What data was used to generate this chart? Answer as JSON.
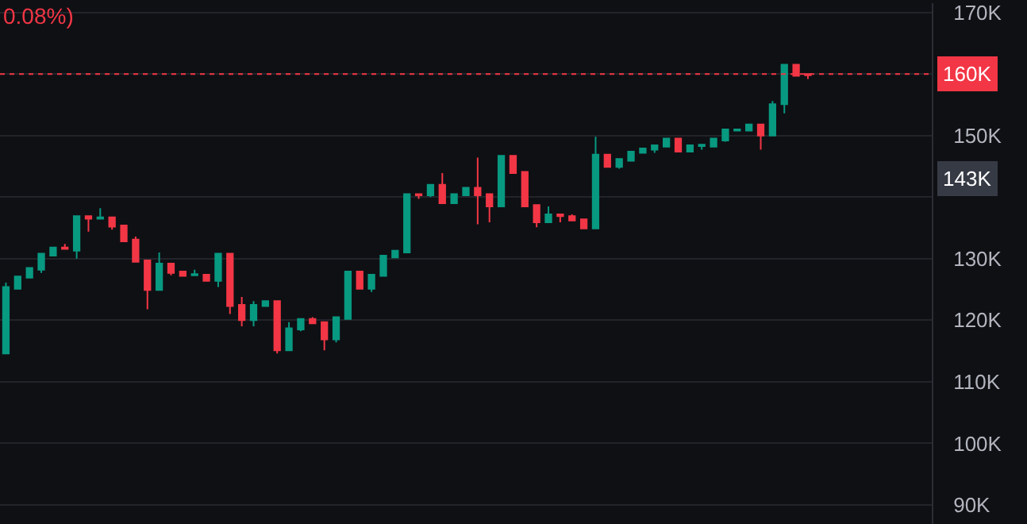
{
  "chart_data": {
    "type": "candlestick",
    "categories": [
      null,
      null,
      null,
      null,
      null,
      null,
      null,
      null,
      null,
      null,
      null,
      null,
      null,
      null,
      null,
      null,
      null,
      null,
      null,
      null,
      null,
      null,
      null,
      null,
      null,
      null,
      null,
      null,
      null,
      null,
      null,
      null,
      null,
      null,
      null,
      null,
      null,
      null,
      null,
      null,
      null,
      null,
      null,
      null,
      null,
      null,
      null,
      null,
      null,
      null,
      null,
      null,
      null,
      null,
      null,
      null,
      null,
      null,
      null,
      null,
      null,
      null,
      null,
      null,
      null,
      null,
      null,
      null,
      null,
      null,
      null,
      null,
      null,
      null,
      null,
      null,
      null,
      null,
      null
    ],
    "ohlc": [
      [
        114.6,
        126.1,
        114.6,
        125.4
      ],
      [
        125.1,
        127.1,
        125.1,
        127.1
      ],
      [
        126.9,
        128.5,
        126.9,
        128.5
      ],
      [
        128.2,
        130.8,
        127.7,
        130.8
      ],
      [
        130.5,
        131.8,
        130.5,
        131.8
      ],
      [
        131.8,
        132.4,
        131.6,
        131.6
      ],
      [
        131.3,
        136.9,
        130.0,
        136.9
      ],
      [
        136.9,
        136.9,
        134.4,
        136.5
      ],
      [
        136.5,
        138.2,
        136.5,
        136.7
      ],
      [
        136.7,
        136.7,
        134.7,
        135.2
      ],
      [
        135.4,
        135.4,
        132.8,
        132.8
      ],
      [
        133.1,
        133.6,
        129.5,
        129.5
      ],
      [
        129.7,
        129.7,
        121.8,
        124.9
      ],
      [
        124.9,
        131.0,
        124.9,
        129.2
      ],
      [
        129.2,
        129.2,
        127.3,
        127.7
      ],
      [
        127.9,
        127.9,
        127.2,
        127.2
      ],
      [
        127.3,
        128.2,
        127.3,
        127.5
      ],
      [
        127.4,
        127.4,
        126.4,
        126.4
      ],
      [
        126.4,
        130.8,
        125.4,
        130.8
      ],
      [
        130.8,
        130.8,
        121.0,
        122.3
      ],
      [
        122.5,
        123.8,
        119.0,
        120.0
      ],
      [
        120.0,
        123.1,
        119.0,
        122.5
      ],
      [
        122.3,
        123.1,
        122.3,
        123.1
      ],
      [
        123.1,
        123.1,
        114.6,
        115.1
      ],
      [
        115.1,
        119.7,
        115.1,
        118.7
      ],
      [
        118.5,
        120.2,
        118.2,
        120.2
      ],
      [
        120.2,
        120.5,
        119.5,
        119.5
      ],
      [
        119.7,
        119.7,
        115.1,
        116.9
      ],
      [
        116.9,
        120.5,
        116.4,
        120.5
      ],
      [
        120.2,
        127.9,
        120.2,
        127.9
      ],
      [
        127.9,
        127.9,
        125.1,
        125.1
      ],
      [
        125.1,
        127.4,
        124.6,
        127.4
      ],
      [
        127.2,
        130.5,
        127.2,
        130.5
      ],
      [
        130.2,
        131.3,
        130.2,
        131.3
      ],
      [
        131.0,
        140.5,
        131.0,
        140.5
      ],
      [
        140.5,
        140.5,
        139.7,
        140.3
      ],
      [
        140.3,
        142.0,
        140.0,
        142.0
      ],
      [
        142.0,
        143.9,
        139.0,
        139.0
      ],
      [
        139.0,
        140.5,
        139.0,
        140.5
      ],
      [
        140.3,
        141.5,
        140.3,
        141.5
      ],
      [
        141.5,
        146.4,
        135.6,
        140.3
      ],
      [
        140.5,
        140.5,
        135.9,
        138.5
      ],
      [
        138.5,
        146.7,
        138.5,
        146.7
      ],
      [
        146.7,
        146.7,
        143.9,
        143.9
      ],
      [
        144.1,
        144.1,
        138.5,
        138.5
      ],
      [
        138.7,
        138.7,
        135.1,
        135.9
      ],
      [
        135.9,
        138.5,
        135.9,
        137.2
      ],
      [
        137.2,
        137.2,
        135.9,
        136.9
      ],
      [
        136.9,
        137.2,
        136.2,
        136.2
      ],
      [
        136.4,
        136.4,
        134.9,
        134.9
      ],
      [
        134.9,
        149.8,
        134.9,
        146.9
      ],
      [
        146.9,
        146.9,
        144.9,
        144.9
      ],
      [
        144.9,
        146.2,
        144.6,
        146.2
      ],
      [
        145.9,
        147.4,
        145.9,
        147.4
      ],
      [
        147.2,
        147.9,
        147.2,
        147.9
      ],
      [
        147.7,
        148.4,
        147.2,
        148.4
      ],
      [
        148.2,
        149.5,
        148.2,
        149.5
      ],
      [
        149.5,
        149.5,
        147.4,
        147.4
      ],
      [
        147.4,
        148.4,
        147.4,
        148.4
      ],
      [
        148.3,
        148.5,
        147.7,
        148.5
      ],
      [
        148.2,
        149.5,
        148.2,
        149.5
      ],
      [
        149.2,
        151.0,
        149.0,
        151.0
      ],
      [
        150.8,
        151.0,
        150.8,
        151.0
      ],
      [
        150.8,
        151.8,
        150.8,
        151.8
      ],
      [
        151.8,
        151.8,
        147.7,
        150.0
      ],
      [
        150.0,
        155.6,
        150.0,
        155.1
      ],
      [
        155.1,
        161.5,
        153.6,
        161.5
      ],
      [
        161.5,
        161.5,
        159.7,
        159.7
      ],
      [
        160.0,
        160.0,
        159.2,
        159.8
      ],
      null,
      null,
      null,
      null,
      null,
      null,
      null,
      null,
      null,
      null
    ],
    "colors": [
      "#089981",
      "#089981",
      "#089981",
      "#089981",
      "#089981",
      "#f23645",
      "#089981",
      "#f23645",
      "#089981",
      "#f23645",
      "#f23645",
      "#f23645",
      "#f23645",
      "#089981",
      "#f23645",
      "#f23645",
      "#089981",
      "#f23645",
      "#089981",
      "#f23645",
      "#f23645",
      "#089981",
      "#089981",
      "#f23645",
      "#089981",
      "#089981",
      "#f23645",
      "#f23645",
      "#089981",
      "#089981",
      "#f23645",
      "#089981",
      "#089981",
      "#089981",
      "#089981",
      "#f23645",
      "#089981",
      "#f23645",
      "#089981",
      "#089981",
      "#f23645",
      "#f23645",
      "#089981",
      "#f23645",
      "#f23645",
      "#f23645",
      "#089981",
      "#f23645",
      "#f23645",
      "#f23645",
      "#089981",
      "#f23645",
      "#089981",
      "#089981",
      "#089981",
      "#089981",
      "#089981",
      "#f23645",
      "#089981",
      "#089981",
      "#089981",
      "#089981",
      "#089981",
      "#089981",
      "#f23645",
      "#089981",
      "#089981",
      "#f23645",
      "#f23645",
      null,
      null,
      null,
      null,
      null,
      null,
      null,
      null,
      null,
      null
    ],
    "ylim": [
      86.9,
      171.5
    ],
    "yticks": [
      {
        "value": 90,
        "label": "90K"
      },
      {
        "value": 100,
        "label": "100K"
      },
      {
        "value": 110,
        "label": "110K"
      },
      {
        "value": 120,
        "label": "120K"
      },
      {
        "value": 130,
        "label": "130K"
      },
      {
        "value": 140,
        "label": null
      },
      {
        "value": 150,
        "label": "150K"
      },
      {
        "value": 160,
        "label": null
      },
      {
        "value": 170,
        "label": "170K"
      }
    ],
    "grid": "y",
    "tick_labels": "y",
    "ref_lines": [
      {
        "axis": "y",
        "value": 160,
        "label": "160K",
        "color": "#f23645",
        "line_style": "dotted"
      }
    ],
    "annotations": [
      "0.08%)",
      "143K"
    ]
  }
}
